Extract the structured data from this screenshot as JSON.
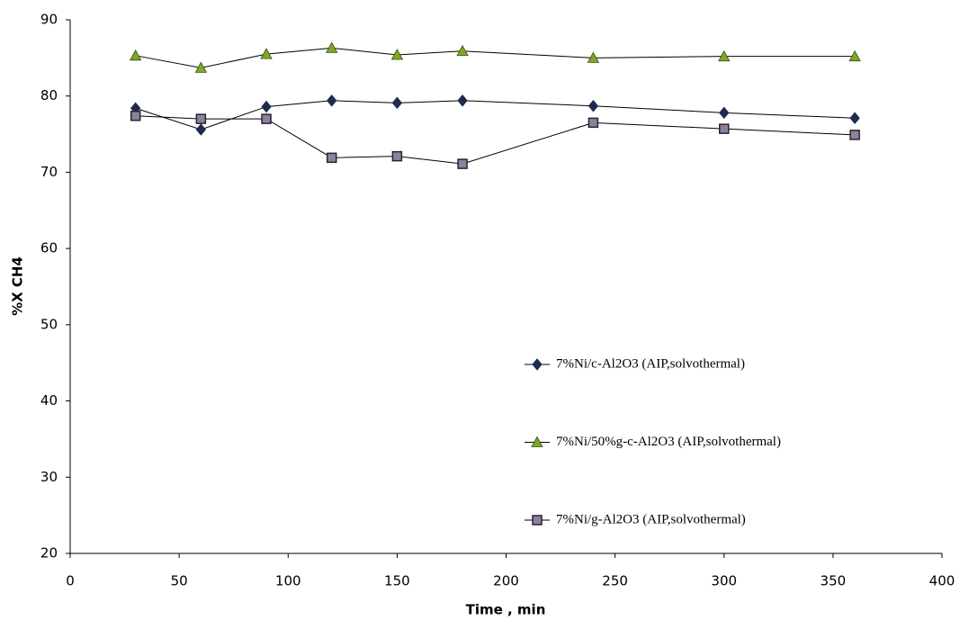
{
  "chart_data": {
    "type": "line",
    "x_label": "Time , min",
    "y_label": "%X CH4",
    "x": [
      30,
      60,
      90,
      120,
      150,
      180,
      240,
      300,
      360
    ],
    "series": [
      {
        "name": "7%Ni/c-Al2O3 (AIP,solvothermal)",
        "color": "#1f2b4d",
        "marker": "diamond",
        "values": [
          78.4,
          75.6,
          78.6,
          79.4,
          79.1,
          79.4,
          78.7,
          77.8,
          77.1
        ]
      },
      {
        "name": "7%Ni/50%g-c-Al2O3 (AIP,solvothermal)",
        "color": "#7ea824",
        "marker": "triangle",
        "values": [
          85.3,
          83.7,
          85.5,
          86.3,
          85.4,
          85.9,
          85.0,
          85.2,
          85.2
        ]
      },
      {
        "name": "7%Ni/g-Al2O3 (AIP,solvothermal)",
        "color": "#8c8299",
        "marker": "square",
        "values": [
          77.4,
          77.0,
          77.0,
          71.9,
          72.1,
          71.1,
          76.5,
          75.7,
          74.9
        ]
      }
    ],
    "xlim": [
      0,
      400
    ],
    "xticks": [
      0,
      50,
      100,
      150,
      200,
      250,
      300,
      350,
      400
    ],
    "ylim": [
      20,
      90
    ],
    "yticks": [
      20,
      30,
      40,
      50,
      60,
      70,
      80,
      90
    ],
    "grid": false
  }
}
